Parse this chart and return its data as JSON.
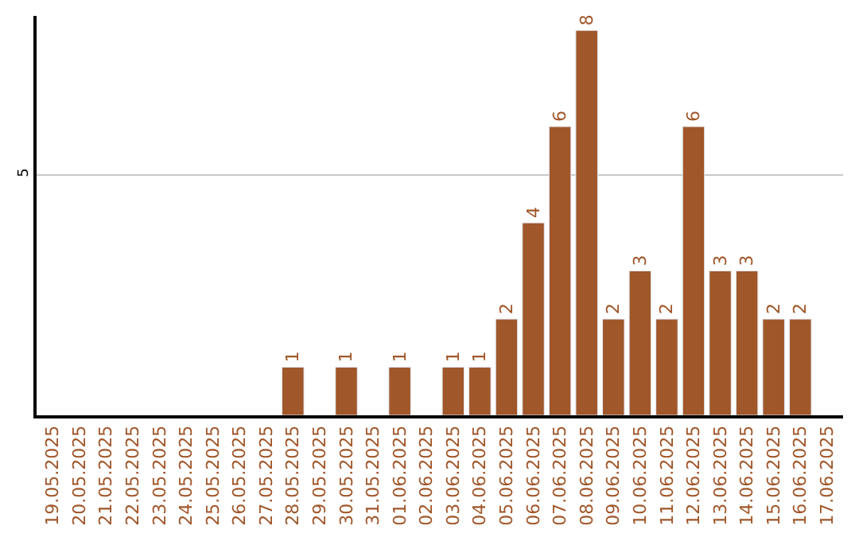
{
  "chart_data": {
    "type": "bar",
    "categories": [
      "19.05.2025",
      "20.05.2025",
      "21.05.2025",
      "22.05.2025",
      "23.05.2025",
      "24.05.2025",
      "25.05.2025",
      "26.05.2025",
      "27.05.2025",
      "28.05.2025",
      "29.05.2025",
      "30.05.2025",
      "31.05.2025",
      "01.06.2025",
      "02.06.2025",
      "03.06.2025",
      "04.06.2025",
      "05.06.2025",
      "06.06.2025",
      "07.06.2025",
      "08.06.2025",
      "09.06.2025",
      "10.06.2025",
      "11.06.2025",
      "12.06.2025",
      "13.06.2025",
      "14.06.2025",
      "15.06.2025",
      "16.06.2025",
      "17.06.2025"
    ],
    "values": [
      null,
      null,
      null,
      null,
      null,
      null,
      null,
      null,
      null,
      1,
      null,
      1,
      null,
      1,
      null,
      1,
      1,
      2,
      4,
      6,
      8,
      2,
      3,
      2,
      6,
      3,
      3,
      2,
      2,
      null
    ],
    "color": "#a0572a",
    "ylim": [
      0,
      8.3
    ],
    "yticks": [
      5
    ],
    "grid": "y",
    "data_labels": true,
    "legend": false
  }
}
